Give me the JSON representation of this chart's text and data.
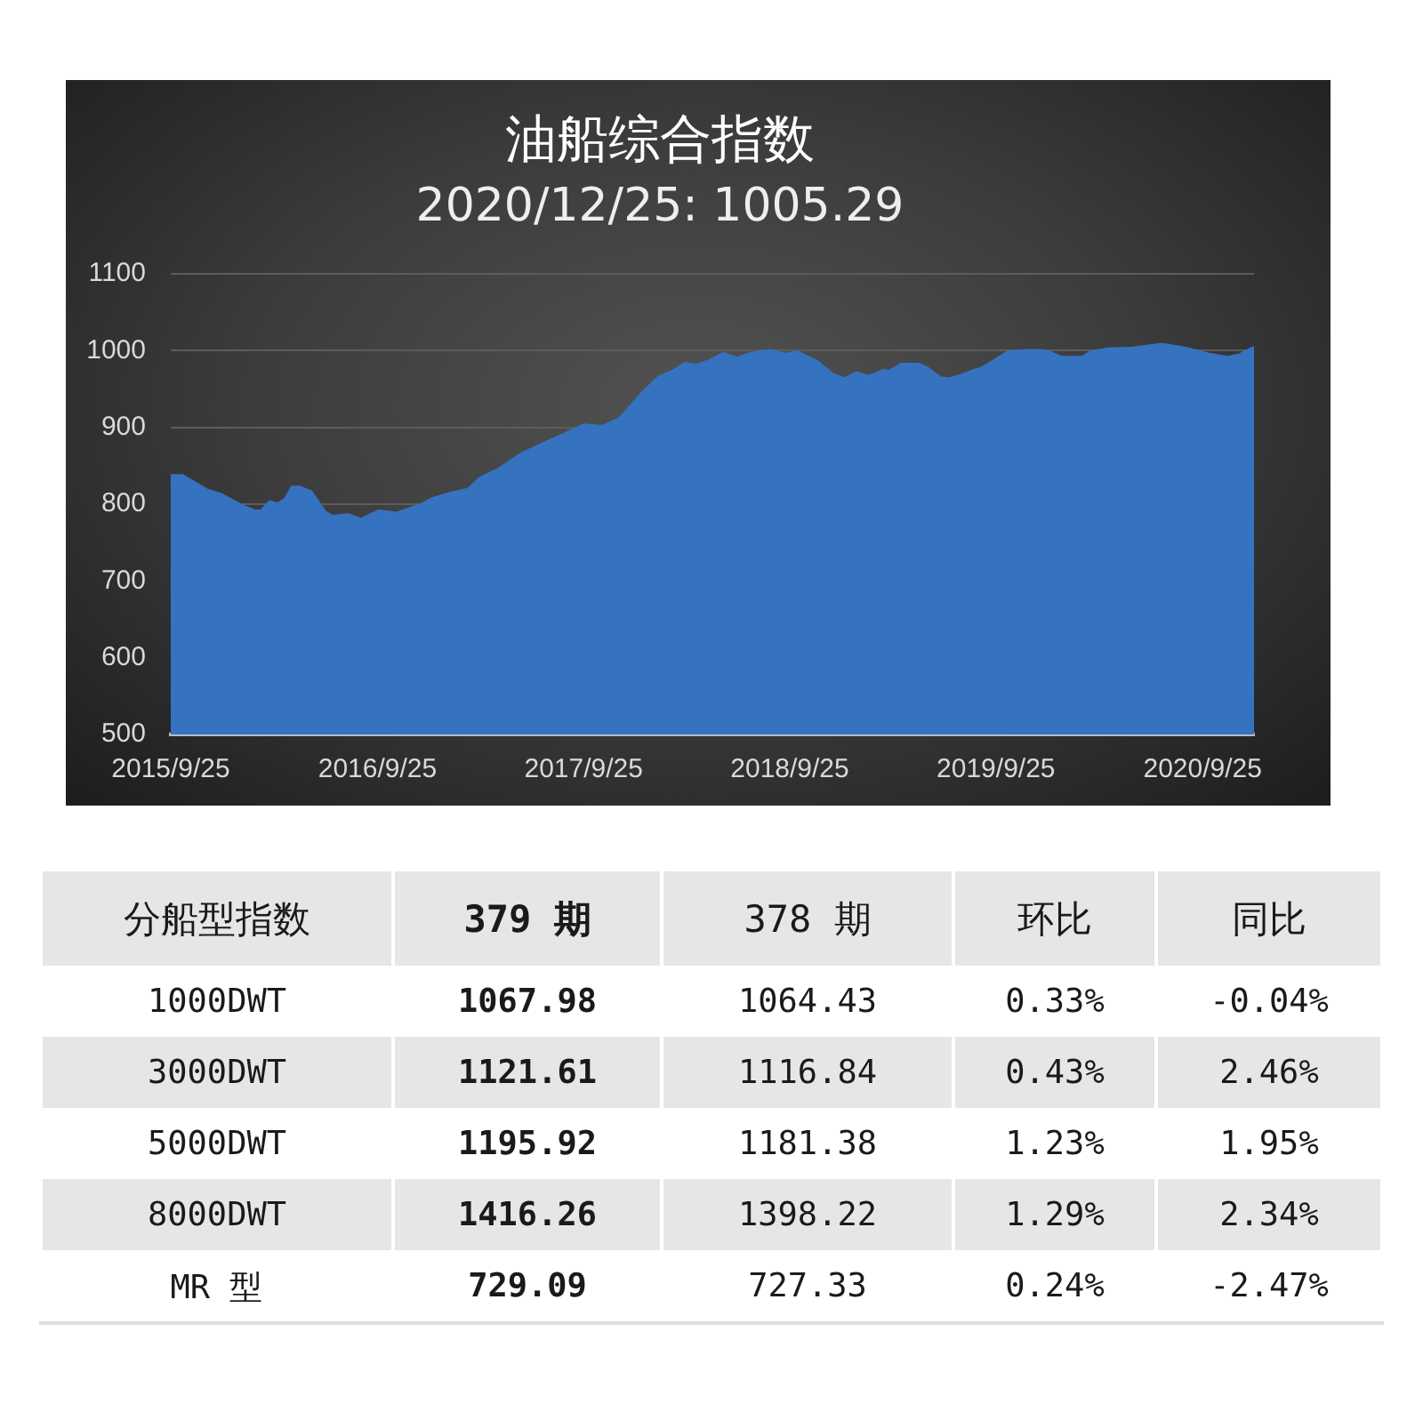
{
  "chart_data": [
    {
      "type": "area",
      "title": "油船综合指数",
      "subtitle": "2020/12/25: 1005.29",
      "x": [
        "2015-09-25",
        "2015-10-16",
        "2015-11-29",
        "2015-12-25",
        "2016-01-31",
        "2016-02-21",
        "2016-03-03",
        "2016-03-18",
        "2016-04-01",
        "2016-04-14",
        "2016-04-26",
        "2016-05-10",
        "2016-05-31",
        "2016-06-25",
        "2016-07-07",
        "2016-08-05",
        "2016-08-27",
        "2016-09-27",
        "2016-10-29",
        "2016-12-11",
        "2016-12-31",
        "2017-02-01",
        "2017-03-04",
        "2017-03-26",
        "2017-04-26",
        "2017-06-06",
        "2017-07-19",
        "2017-08-25",
        "2017-09-25",
        "2017-10-27",
        "2017-11-27",
        "2018-01-03",
        "2018-02-04",
        "2018-03-02",
        "2018-03-23",
        "2018-04-13",
        "2018-05-04",
        "2018-05-30",
        "2018-06-25",
        "2018-07-17",
        "2018-08-22",
        "2018-09-18",
        "2018-10-08",
        "2018-11-14",
        "2018-12-10",
        "2018-12-31",
        "2019-01-21",
        "2019-02-11",
        "2019-03-10",
        "2019-03-20",
        "2019-04-10",
        "2019-05-12",
        "2019-05-27",
        "2019-06-20",
        "2019-07-03",
        "2019-07-24",
        "2019-08-14",
        "2019-08-30",
        "2019-09-20",
        "2019-10-16",
        "2019-11-17",
        "2019-12-13",
        "2019-12-28",
        "2020-01-19",
        "2020-02-24",
        "2020-03-11",
        "2020-04-11",
        "2020-05-23",
        "2020-07-15",
        "2020-08-26",
        "2020-10-07",
        "2020-11-08",
        "2020-11-28",
        "2020-12-25"
      ],
      "series": [
        {
          "color": "#3573c0",
          "values": [
            838,
            838,
            819,
            813,
            798,
            792,
            792,
            804,
            801,
            807,
            823,
            823,
            817,
            790,
            785,
            787,
            781,
            792,
            789,
            800,
            808,
            815,
            820,
            835,
            846,
            866,
            881,
            893,
            904,
            902,
            912,
            943,
            966,
            974,
            984,
            982,
            987,
            997,
            991,
            997,
            1001,
            996,
            999,
            986,
            970,
            964,
            972,
            967,
            975,
            974,
            983,
            983,
            978,
            965,
            964,
            968,
            974,
            978,
            987,
            999,
            1001,
            1001,
            999,
            992,
            992,
            999,
            1003,
            1004,
            1009,
            1004,
            996,
            992,
            995,
            1005
          ]
        }
      ],
      "xlim": [
        "2015-09-25",
        "2020-12-25"
      ],
      "xticks": [
        {
          "value": "2015-09-25",
          "label": "2015/9/25"
        },
        {
          "value": "2016-09-25",
          "label": "2016/9/25"
        },
        {
          "value": "2017-09-25",
          "label": "2017/9/25"
        },
        {
          "value": "2018-09-25",
          "label": "2018/9/25"
        },
        {
          "value": "2019-09-25",
          "label": "2019/9/25"
        },
        {
          "value": "2020-09-25",
          "label": "2020/9/25"
        }
      ],
      "ylim": [
        500,
        1100
      ],
      "yticks": [
        500,
        600,
        700,
        800,
        900,
        1000,
        1100
      ],
      "grid": "y"
    },
    {
      "type": "other",
      "categories": [
        "分船型指数",
        "379 期",
        "378 期",
        "环比",
        "同比"
      ],
      "cell_labels": [
        [
          "1000DWT",
          "1067.98",
          "1064.43",
          "0.33%",
          "-0.04%"
        ],
        [
          "3000DWT",
          "1121.61",
          "1116.84",
          "0.43%",
          "2.46%"
        ],
        [
          "5000DWT",
          "1195.92",
          "1181.38",
          "1.23%",
          "1.95%"
        ],
        [
          "8000DWT",
          "1416.26",
          "1398.22",
          "1.29%",
          "2.34%"
        ],
        [
          "MR 型",
          "729.09",
          "727.33",
          "0.24%",
          "-2.47%"
        ]
      ]
    }
  ]
}
